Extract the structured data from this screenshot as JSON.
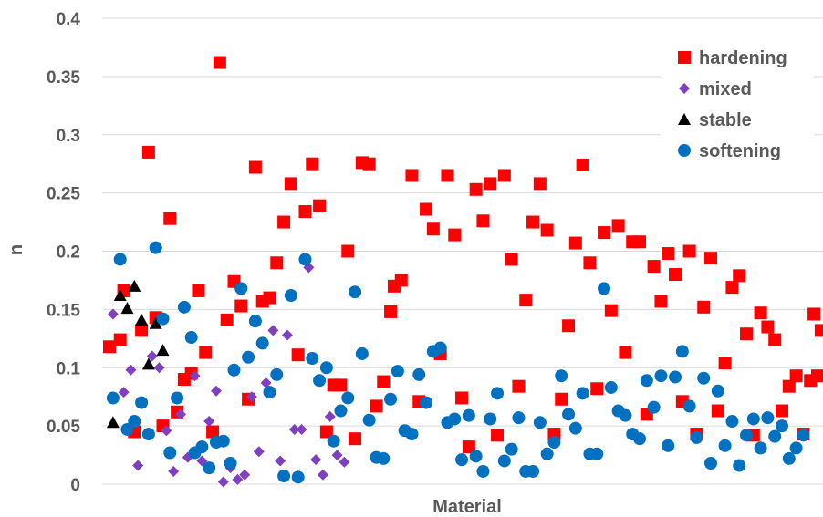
{
  "chart_data": {
    "type": "scatter",
    "title": "",
    "xlabel": "Material",
    "ylabel": "n",
    "ylim": [
      0,
      0.4
    ],
    "yticks": [
      "0",
      "0.05",
      "0.1",
      "0.15",
      "0.2",
      "0.25",
      "0.3",
      "0.35",
      "0.4"
    ],
    "xlim": [
      1,
      200
    ],
    "grid": "horizontal",
    "legend_position": "top-right",
    "series": [
      {
        "name": "hardening",
        "color": "#ff0000",
        "marker": "square",
        "points": [
          [
            1,
            0.118
          ],
          [
            4,
            0.124
          ],
          [
            5,
            0.166
          ],
          [
            8,
            0.045
          ],
          [
            10,
            0.132
          ],
          [
            12,
            0.285
          ],
          [
            14,
            0.143
          ],
          [
            16,
            0.05
          ],
          [
            18,
            0.228
          ],
          [
            20,
            0.062
          ],
          [
            22,
            0.09
          ],
          [
            24,
            0.095
          ],
          [
            26,
            0.166
          ],
          [
            28,
            0.113
          ],
          [
            30,
            0.045
          ],
          [
            32,
            0.362
          ],
          [
            34,
            0.141
          ],
          [
            36,
            0.174
          ],
          [
            38,
            0.153
          ],
          [
            40,
            0.073
          ],
          [
            42,
            0.272
          ],
          [
            44,
            0.157
          ],
          [
            46,
            0.16
          ],
          [
            48,
            0.19
          ],
          [
            50,
            0.225
          ],
          [
            52,
            0.258
          ],
          [
            54,
            0.111
          ],
          [
            56,
            0.234
          ],
          [
            58,
            0.275
          ],
          [
            60,
            0.239
          ],
          [
            62,
            0.045
          ],
          [
            64,
            0.085
          ],
          [
            66,
            0.085
          ],
          [
            68,
            0.2
          ],
          [
            70,
            0.039
          ],
          [
            72,
            0.276
          ],
          [
            74,
            0.275
          ],
          [
            76,
            0.067
          ],
          [
            78,
            0.088
          ],
          [
            80,
            0.148
          ],
          [
            81,
            0.17
          ],
          [
            83,
            0.175
          ],
          [
            86,
            0.265
          ],
          [
            88,
            0.071
          ],
          [
            90,
            0.236
          ],
          [
            92,
            0.219
          ],
          [
            94,
            0.112
          ],
          [
            96,
            0.265
          ],
          [
            98,
            0.214
          ],
          [
            100,
            0.074
          ],
          [
            102,
            0.032
          ],
          [
            104,
            0.253
          ],
          [
            106,
            0.226
          ],
          [
            108,
            0.258
          ],
          [
            110,
            0.042
          ],
          [
            112,
            0.265
          ],
          [
            114,
            0.193
          ],
          [
            116,
            0.084
          ],
          [
            118,
            0.158
          ],
          [
            120,
            0.225
          ],
          [
            122,
            0.258
          ],
          [
            124,
            0.218
          ],
          [
            126,
            0.043
          ],
          [
            128,
            0.073
          ],
          [
            130,
            0.136
          ],
          [
            132,
            0.207
          ],
          [
            134,
            0.274
          ],
          [
            136,
            0.19
          ],
          [
            138,
            0.082
          ],
          [
            140,
            0.216
          ],
          [
            142,
            0.149
          ],
          [
            144,
            0.222
          ],
          [
            146,
            0.113
          ],
          [
            148,
            0.208
          ],
          [
            150,
            0.208
          ],
          [
            152,
            0.06
          ],
          [
            154,
            0.187
          ],
          [
            156,
            0.157
          ],
          [
            158,
            0.198
          ],
          [
            160,
            0.18
          ],
          [
            162,
            0.071
          ],
          [
            164,
            0.2
          ],
          [
            166,
            0.043
          ],
          [
            168,
            0.152
          ],
          [
            170,
            0.194
          ],
          [
            172,
            0.063
          ],
          [
            174,
            0.104
          ],
          [
            176,
            0.169
          ],
          [
            178,
            0.179
          ],
          [
            180,
            0.129
          ],
          [
            182,
            0.042
          ],
          [
            184,
            0.147
          ],
          [
            186,
            0.135
          ],
          [
            188,
            0.124
          ],
          [
            190,
            0.063
          ],
          [
            192,
            0.084
          ],
          [
            194,
            0.093
          ],
          [
            196,
            0.043
          ],
          [
            198,
            0.089
          ],
          [
            199,
            0.146
          ],
          [
            200,
            0.093
          ],
          [
            201,
            0.132
          ]
        ]
      },
      {
        "name": "mixed",
        "color": "#7f3fbf",
        "marker": "diamond",
        "points": [
          [
            2,
            0.146
          ],
          [
            5,
            0.079
          ],
          [
            7,
            0.098
          ],
          [
            9,
            0.016
          ],
          [
            13,
            0.11
          ],
          [
            15,
            0.1
          ],
          [
            17,
            0.046
          ],
          [
            19,
            0.011
          ],
          [
            21,
            0.06
          ],
          [
            23,
            0.023
          ],
          [
            25,
            0.093
          ],
          [
            27,
            0.02
          ],
          [
            29,
            0.054
          ],
          [
            31,
            0.08
          ],
          [
            33,
            0.002
          ],
          [
            35,
            0.014
          ],
          [
            37,
            0.004
          ],
          [
            39,
            0.008
          ],
          [
            41,
            0.075
          ],
          [
            43,
            0.028
          ],
          [
            45,
            0.087
          ],
          [
            47,
            0.132
          ],
          [
            49,
            0.02
          ],
          [
            51,
            0.128
          ],
          [
            53,
            0.047
          ],
          [
            55,
            0.047
          ],
          [
            57,
            0.186
          ],
          [
            59,
            0.021
          ],
          [
            61,
            0.008
          ],
          [
            63,
            0.058
          ],
          [
            65,
            0.025
          ],
          [
            67,
            0.019
          ]
        ]
      },
      {
        "name": "stable",
        "color": "#000000",
        "marker": "triangle",
        "points": [
          [
            2,
            0.053
          ],
          [
            4,
            0.162
          ],
          [
            6,
            0.151
          ],
          [
            8,
            0.17
          ],
          [
            10,
            0.141
          ],
          [
            12,
            0.103
          ],
          [
            14,
            0.138
          ],
          [
            16,
            0.115
          ]
        ]
      },
      {
        "name": "softening",
        "color": "#0070c0",
        "marker": "circle",
        "points": [
          [
            2,
            0.074
          ],
          [
            4,
            0.193
          ],
          [
            6,
            0.047
          ],
          [
            8,
            0.054
          ],
          [
            10,
            0.07
          ],
          [
            12,
            0.043
          ],
          [
            14,
            0.203
          ],
          [
            16,
            0.142
          ],
          [
            18,
            0.027
          ],
          [
            20,
            0.074
          ],
          [
            22,
            0.152
          ],
          [
            24,
            0.126
          ],
          [
            25,
            0.027
          ],
          [
            27,
            0.032
          ],
          [
            29,
            0.014
          ],
          [
            31,
            0.036
          ],
          [
            33,
            0.037
          ],
          [
            35,
            0.018
          ],
          [
            36,
            0.098
          ],
          [
            38,
            0.168
          ],
          [
            40,
            0.109
          ],
          [
            42,
            0.14
          ],
          [
            44,
            0.121
          ],
          [
            46,
            0.079
          ],
          [
            48,
            0.094
          ],
          [
            50,
            0.007
          ],
          [
            52,
            0.162
          ],
          [
            54,
            0.006
          ],
          [
            56,
            0.193
          ],
          [
            58,
            0.108
          ],
          [
            60,
            0.089
          ],
          [
            62,
            0.1
          ],
          [
            64,
            0.037
          ],
          [
            66,
            0.063
          ],
          [
            68,
            0.074
          ],
          [
            70,
            0.165
          ],
          [
            72,
            0.112
          ],
          [
            74,
            0.055
          ],
          [
            76,
            0.023
          ],
          [
            78,
            0.022
          ],
          [
            80,
            0.073
          ],
          [
            82,
            0.097
          ],
          [
            84,
            0.046
          ],
          [
            86,
            0.043
          ],
          [
            88,
            0.094
          ],
          [
            90,
            0.07
          ],
          [
            92,
            0.114
          ],
          [
            94,
            0.117
          ],
          [
            96,
            0.053
          ],
          [
            98,
            0.056
          ],
          [
            100,
            0.021
          ],
          [
            102,
            0.059
          ],
          [
            104,
            0.024
          ],
          [
            106,
            0.011
          ],
          [
            108,
            0.056
          ],
          [
            110,
            0.078
          ],
          [
            112,
            0.02
          ],
          [
            114,
            0.03
          ],
          [
            116,
            0.057
          ],
          [
            118,
            0.011
          ],
          [
            120,
            0.011
          ],
          [
            122,
            0.053
          ],
          [
            124,
            0.026
          ],
          [
            126,
            0.036
          ],
          [
            128,
            0.093
          ],
          [
            130,
            0.06
          ],
          [
            132,
            0.048
          ],
          [
            134,
            0.078
          ],
          [
            136,
            0.026
          ],
          [
            138,
            0.026
          ],
          [
            140,
            0.168
          ],
          [
            142,
            0.083
          ],
          [
            144,
            0.063
          ],
          [
            146,
            0.059
          ],
          [
            148,
            0.043
          ],
          [
            150,
            0.039
          ],
          [
            152,
            0.089
          ],
          [
            154,
            0.066
          ],
          [
            156,
            0.093
          ],
          [
            158,
            0.033
          ],
          [
            160,
            0.092
          ],
          [
            162,
            0.114
          ],
          [
            164,
            0.067
          ],
          [
            166,
            0.04
          ],
          [
            168,
            0.091
          ],
          [
            170,
            0.018
          ],
          [
            172,
            0.08
          ],
          [
            174,
            0.033
          ],
          [
            176,
            0.054
          ],
          [
            178,
            0.016
          ],
          [
            180,
            0.042
          ],
          [
            182,
            0.056
          ],
          [
            184,
            0.031
          ],
          [
            186,
            0.057
          ],
          [
            188,
            0.041
          ],
          [
            190,
            0.05
          ],
          [
            192,
            0.022
          ],
          [
            194,
            0.031
          ],
          [
            196,
            0.042
          ]
        ]
      }
    ]
  }
}
